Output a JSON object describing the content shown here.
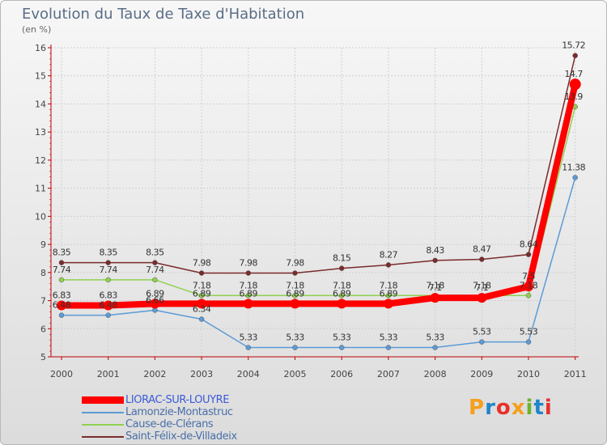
{
  "title": "Evolution du Taux de Taxe d'Habitation",
  "unit_label": "(en %)",
  "logo": {
    "text": "Proxiti",
    "colors": [
      "#f59f1c",
      "#1f86c9",
      "#e8302a",
      "#f59f1c",
      "#6cb42c",
      "#1f86c9",
      "#e8302a"
    ]
  },
  "chart_data": {
    "type": "line",
    "title": "Evolution du Taux de Taxe d'Habitation",
    "ylabel": "(en %)",
    "xlabel": "",
    "ylim": [
      5,
      16
    ],
    "yticks": [
      5,
      6,
      7,
      8,
      9,
      10,
      11,
      12,
      13,
      14,
      15,
      16
    ],
    "categories": [
      "2000",
      "2001",
      "2002",
      "2003",
      "2004",
      "2005",
      "2006",
      "2007",
      "2008",
      "2009",
      "2010",
      "2011"
    ],
    "series": [
      {
        "name": "LIORAC-SUR-LOUYRE",
        "color": "#ff0000",
        "values": [
          6.83,
          6.83,
          6.89,
          6.89,
          6.89,
          6.89,
          6.89,
          6.89,
          7.1,
          7.1,
          7.5,
          14.7
        ],
        "labels": [
          "6.83",
          "6.83",
          "6.89",
          "6.89",
          "6.89",
          "6.89",
          "6.89",
          "6.89",
          "7.1",
          "7.1",
          "7.5",
          "14.7"
        ]
      },
      {
        "name": "Lamonzie-Montastruc",
        "color": "#5b9bd5",
        "values": [
          6.48,
          6.48,
          6.66,
          6.34,
          5.33,
          5.33,
          5.33,
          5.33,
          5.33,
          5.53,
          5.53,
          11.38
        ],
        "labels": [
          "6.48",
          "6.48",
          "6.66",
          "6.34",
          "5.33",
          "5.33",
          "5.33",
          "5.33",
          "5.33",
          "5.53",
          "5.53",
          "11.38"
        ]
      },
      {
        "name": "Cause-de-Clérans",
        "color": "#8fd14f",
        "values": [
          7.74,
          7.74,
          7.74,
          7.18,
          7.18,
          7.18,
          7.18,
          7.18,
          7.18,
          7.18,
          7.18,
          13.9
        ],
        "labels": [
          "7.74",
          "7.74",
          "7.74",
          "7.18",
          "7.18",
          "7.18",
          "7.18",
          "7.18",
          "7.18",
          "7.18",
          "7.18",
          "13.9"
        ]
      },
      {
        "name": "Saint-Félix-de-Villadeix",
        "color": "#7a2b2b",
        "values": [
          8.35,
          8.35,
          8.35,
          7.98,
          7.98,
          7.98,
          8.15,
          8.27,
          8.43,
          8.47,
          8.64,
          15.72
        ],
        "labels": [
          "8.35",
          "8.35",
          "8.35",
          "7.98",
          "7.98",
          "7.98",
          "8.15",
          "8.27",
          "8.43",
          "8.47",
          "8.64",
          "15.72"
        ]
      }
    ]
  }
}
